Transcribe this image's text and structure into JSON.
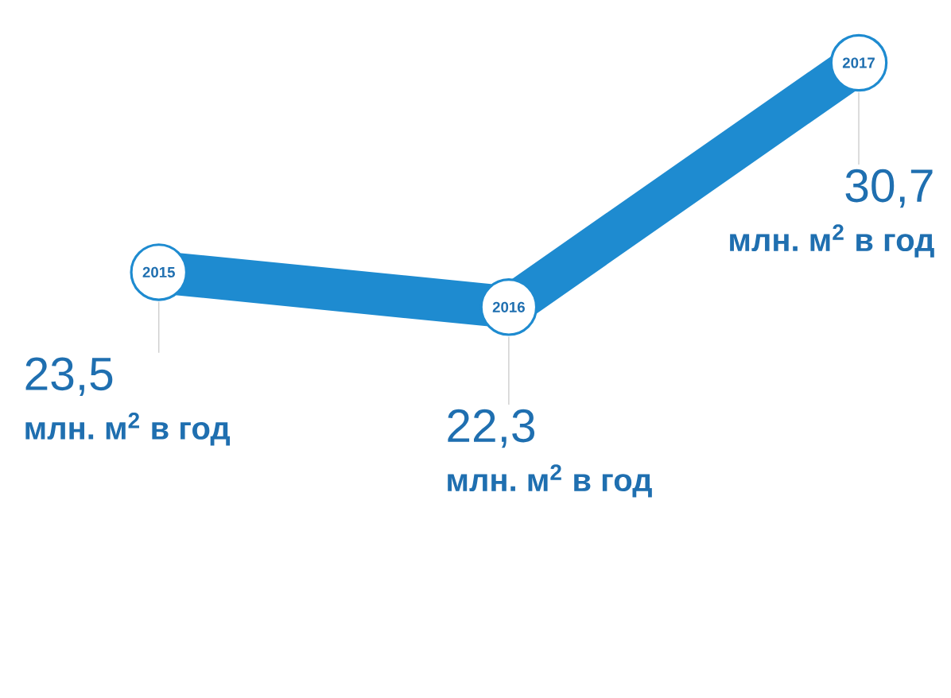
{
  "chart_data": {
    "type": "line",
    "categories": [
      "2015",
      "2016",
      "2017"
    ],
    "series": [
      {
        "color": "#1e8bd0",
        "values": [
          23.5,
          22.3,
          30.7
        ],
        "value_labels": [
          "23,5",
          "22,3",
          "30,7"
        ]
      }
    ],
    "marker": "circle",
    "annotations": [
      "млн. м$^{2}$ в год",
      "млн. м$^{2}$ в год",
      "млн. м$^{2}$ в год"
    ]
  }
}
